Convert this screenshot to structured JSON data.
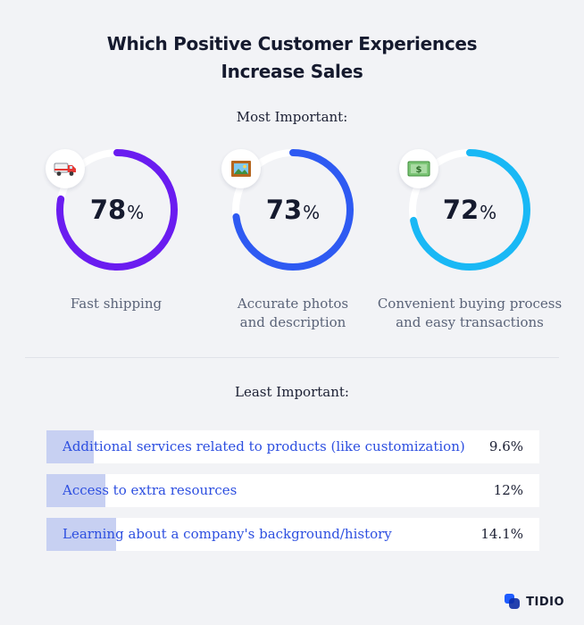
{
  "title": {
    "line1": "Which Positive Customer Experiences",
    "line2": "Increase Sales"
  },
  "chart_data": [
    {
      "type": "donut",
      "section_label": "Most Important:",
      "unit": "%",
      "categories": [
        "Fast shipping",
        "Accurate photos and description",
        "Convenient buying process and easy transactions"
      ],
      "values": [
        78,
        73,
        72
      ],
      "captions": [
        {
          "line1": "Fast shipping",
          "line2": ""
        },
        {
          "line1": "Accurate photos",
          "line2": "and description"
        },
        {
          "line1": "Convenient buying process",
          "line2": "and easy transactions"
        }
      ],
      "colors": [
        "#6a1cf0",
        "#2e5af2",
        "#19b8f5"
      ],
      "icons": [
        "delivery-truck-icon",
        "framed-picture-icon",
        "dollar-banknote-icon"
      ],
      "vmax": 100
    },
    {
      "type": "bar",
      "orientation": "horizontal",
      "section_label": "Least Important:",
      "categories": [
        "Additional services related to products (like customization)",
        "Access to extra resources",
        "Learning about a company's background/history"
      ],
      "values": [
        9.6,
        12,
        14.1
      ],
      "value_labels": [
        "9.6%",
        "12%",
        "14.1%"
      ],
      "xlim": [
        0,
        100
      ],
      "bar_color": "#c7d0f2",
      "label_color": "#2d4fe0"
    }
  ],
  "brand": {
    "name": "TIDIO",
    "icon": "tidio-logo-icon"
  }
}
